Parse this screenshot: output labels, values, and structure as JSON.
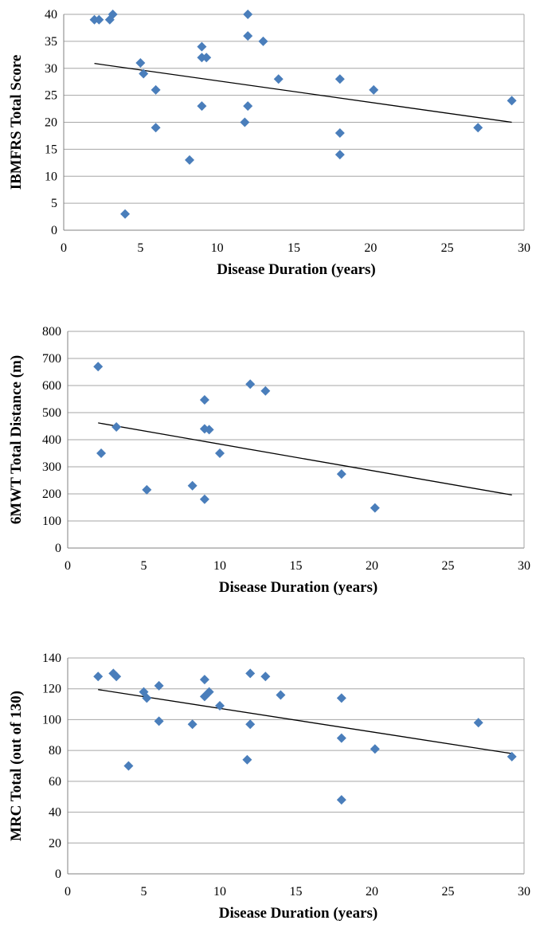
{
  "chart_data": [
    {
      "type": "scatter",
      "xlabel": "Disease Duration (years)",
      "ylabel": "IBMFRS Total Score",
      "xlim": [
        0,
        30
      ],
      "ylim": [
        0,
        40
      ],
      "xticks": [
        0,
        5,
        10,
        15,
        20,
        25,
        30
      ],
      "yticks": [
        0,
        5,
        10,
        15,
        20,
        25,
        30,
        35,
        40
      ],
      "grid": "horizontal",
      "marker_color": "#4a7ebb",
      "points": [
        [
          2,
          39
        ],
        [
          2.3,
          39
        ],
        [
          3,
          39
        ],
        [
          3.2,
          40
        ],
        [
          4,
          3
        ],
        [
          5,
          31
        ],
        [
          5.2,
          29
        ],
        [
          6,
          26
        ],
        [
          6,
          19
        ],
        [
          8.2,
          13
        ],
        [
          9,
          34
        ],
        [
          9,
          32
        ],
        [
          9.3,
          32
        ],
        [
          9,
          23
        ],
        [
          11.8,
          20
        ],
        [
          12,
          40
        ],
        [
          12,
          36
        ],
        [
          12,
          23
        ],
        [
          13,
          35
        ],
        [
          14,
          28
        ],
        [
          18,
          28
        ],
        [
          18,
          18
        ],
        [
          18,
          14
        ],
        [
          20.2,
          26
        ],
        [
          27,
          19
        ],
        [
          29.2,
          24
        ]
      ],
      "trendline": [
        [
          2,
          30.9
        ],
        [
          29.2,
          20
        ]
      ]
    },
    {
      "type": "scatter",
      "xlabel": "Disease Duration (years)",
      "ylabel": "6MWT Total Distance (m)",
      "xlim": [
        0,
        30
      ],
      "ylim": [
        0,
        800
      ],
      "xticks": [
        0,
        5,
        10,
        15,
        20,
        25,
        30
      ],
      "yticks": [
        0,
        100,
        200,
        300,
        400,
        500,
        600,
        700,
        800
      ],
      "grid": "horizontal",
      "marker_color": "#4a7ebb",
      "points": [
        [
          2,
          670
        ],
        [
          2.2,
          350
        ],
        [
          3.2,
          447
        ],
        [
          5.2,
          215
        ],
        [
          8.2,
          230
        ],
        [
          9,
          547
        ],
        [
          9,
          440
        ],
        [
          9.3,
          437
        ],
        [
          9,
          180
        ],
        [
          10,
          350
        ],
        [
          12,
          605
        ],
        [
          13,
          580
        ],
        [
          18,
          273
        ],
        [
          20.2,
          148
        ]
      ],
      "trendline": [
        [
          2,
          462
        ],
        [
          29.2,
          196
        ]
      ]
    },
    {
      "type": "scatter",
      "xlabel": "Disease Duration (years)",
      "ylabel": "MRC Total (out of 130)",
      "xlim": [
        0,
        30
      ],
      "ylim": [
        0,
        140
      ],
      "xticks": [
        0,
        5,
        10,
        15,
        20,
        25,
        30
      ],
      "yticks": [
        0,
        20,
        40,
        60,
        80,
        100,
        120,
        140
      ],
      "grid": "horizontal",
      "marker_color": "#4a7ebb",
      "points": [
        [
          2,
          128
        ],
        [
          3,
          130
        ],
        [
          3.2,
          128
        ],
        [
          4,
          70
        ],
        [
          5,
          118
        ],
        [
          5.2,
          114
        ],
        [
          6,
          122
        ],
        [
          6,
          99
        ],
        [
          8.2,
          97
        ],
        [
          9,
          126
        ],
        [
          9,
          115
        ],
        [
          9.3,
          118
        ],
        [
          10,
          109
        ],
        [
          11.8,
          74
        ],
        [
          12,
          130
        ],
        [
          12,
          97
        ],
        [
          13,
          128
        ],
        [
          14,
          116
        ],
        [
          18,
          114
        ],
        [
          18,
          88
        ],
        [
          18,
          48
        ],
        [
          20.2,
          81
        ],
        [
          27,
          98
        ],
        [
          29.2,
          76
        ]
      ],
      "trendline": [
        [
          2,
          119.5
        ],
        [
          29.2,
          78
        ]
      ]
    }
  ]
}
